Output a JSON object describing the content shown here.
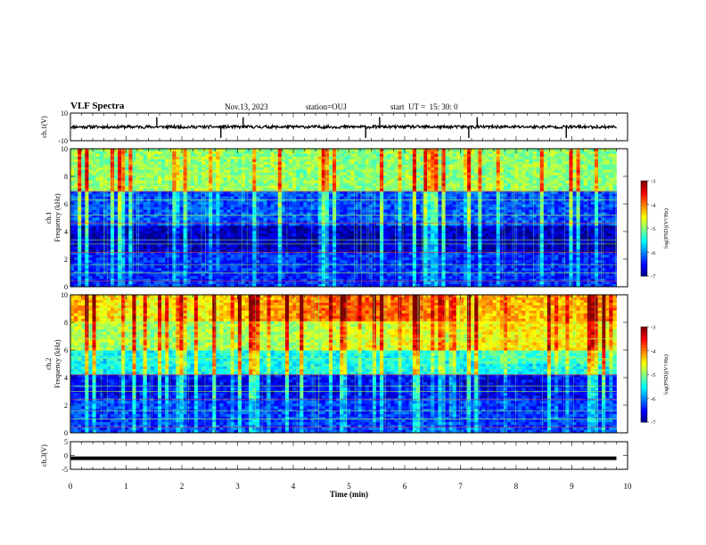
{
  "header": {
    "title": "VLF Spectra",
    "date": "Nov.13, 2023",
    "station": "station=OUJ",
    "start": "start  UT =  15: 30: 0"
  },
  "chart_data": [
    {
      "type": "line",
      "panel": "ch1-waveform",
      "ylabel": "ch.1(V)",
      "ylim": [
        -10,
        10
      ],
      "yticks": [
        "10",
        "-10"
      ],
      "xlim": [
        0,
        10
      ],
      "x": [
        0,
        1,
        2,
        3,
        4,
        5,
        6,
        7,
        8,
        9,
        9.8
      ],
      "values": [
        0,
        0,
        0,
        0,
        0,
        0,
        0,
        0,
        0,
        0,
        0
      ],
      "spikes_x": [
        1.55,
        2.7,
        3.1,
        5.3,
        5.55,
        7.15,
        7.3,
        8.9
      ],
      "color": "#000000"
    },
    {
      "type": "heatmap",
      "panel": "ch1-spectrogram",
      "ylabel": "ch.1",
      "ylabel2": "Frequency (kHz)",
      "ylim": [
        0,
        10
      ],
      "yticks": [
        "0",
        "2",
        "4",
        "6",
        "8",
        "10"
      ],
      "xlim": [
        0,
        10
      ],
      "data_end_min": 9.8,
      "colorbar": {
        "label": "log(PSD)(V²/Hz)",
        "ticks": [
          "-3",
          "-4",
          "-5",
          "-6",
          "-7"
        ],
        "range": [
          -7,
          -3
        ]
      }
    },
    {
      "type": "heatmap",
      "panel": "ch2-spectrogram",
      "ylabel": "ch.2",
      "ylabel2": "Frequency (kHz)",
      "ylim": [
        0,
        10
      ],
      "yticks": [
        "0",
        "2",
        "4",
        "6",
        "8",
        "10"
      ],
      "xlim": [
        0,
        10
      ],
      "data_end_min": 9.8,
      "colorbar": {
        "label": "log(PSD)(V²/Hz)",
        "ticks": [
          "-3",
          "-4",
          "-5",
          "-6",
          "-7"
        ],
        "range": [
          -7,
          -3
        ]
      }
    },
    {
      "type": "line",
      "panel": "ch3-waveform",
      "ylabel": "ch.3(V)",
      "ylim": [
        -5,
        5
      ],
      "yticks": [
        "5",
        "0",
        "-5"
      ],
      "xlim": [
        0,
        10
      ],
      "x": [
        0,
        9.8
      ],
      "values": [
        -1,
        -1
      ],
      "color": "#000000"
    }
  ],
  "xaxis": {
    "label": "Time (min)",
    "ticks": [
      "0",
      "1",
      "2",
      "3",
      "4",
      "5",
      "6",
      "7",
      "8",
      "9",
      "10"
    ]
  }
}
